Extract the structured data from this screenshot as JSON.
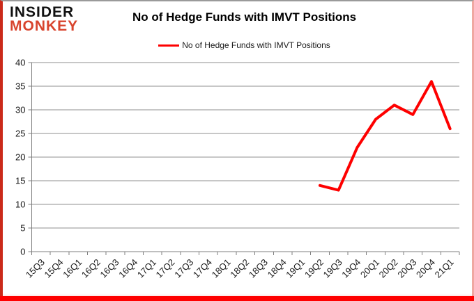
{
  "logo": {
    "line1": "INSIDER",
    "line2": "MONKEY",
    "line1_color": "#111111",
    "line2_color": "#d8442d"
  },
  "header": {
    "title": "No of Hedge Funds with IMVT Positions"
  },
  "legend": {
    "label": "No of Hedge Funds with IMVT Positions",
    "swatch_color": "#fe0000"
  },
  "frame": {
    "bottom_bar_color": "#fe0000",
    "left_border_color": "#cb2a1a"
  },
  "chart_data": {
    "type": "line",
    "title": "No of Hedge Funds with IMVT Positions",
    "xlabel": "",
    "ylabel": "",
    "ylim": [
      0,
      40
    ],
    "ytick_step": 5,
    "grid": true,
    "legend_position": "top",
    "line_color": "#fe0000",
    "line_width": 4,
    "gridline_color": "#8f8f8f",
    "axis_color": "#7f7f7f",
    "tick_label_color": "#1a1a1a",
    "categories": [
      "15Q3",
      "15Q4",
      "16Q1",
      "16Q2",
      "16Q3",
      "16Q4",
      "17Q1",
      "17Q2",
      "17Q3",
      "17Q4",
      "18Q1",
      "18Q2",
      "18Q3",
      "18Q4",
      "19Q1",
      "19Q2",
      "19Q3",
      "19Q4",
      "20Q1",
      "20Q2",
      "20Q3",
      "20Q4",
      "21Q1"
    ],
    "series": [
      {
        "name": "No of Hedge Funds with IMVT Positions",
        "values": [
          null,
          null,
          null,
          null,
          null,
          null,
          null,
          null,
          null,
          null,
          null,
          null,
          null,
          null,
          null,
          14,
          13,
          22,
          28,
          31,
          29,
          36,
          26
        ]
      }
    ]
  }
}
